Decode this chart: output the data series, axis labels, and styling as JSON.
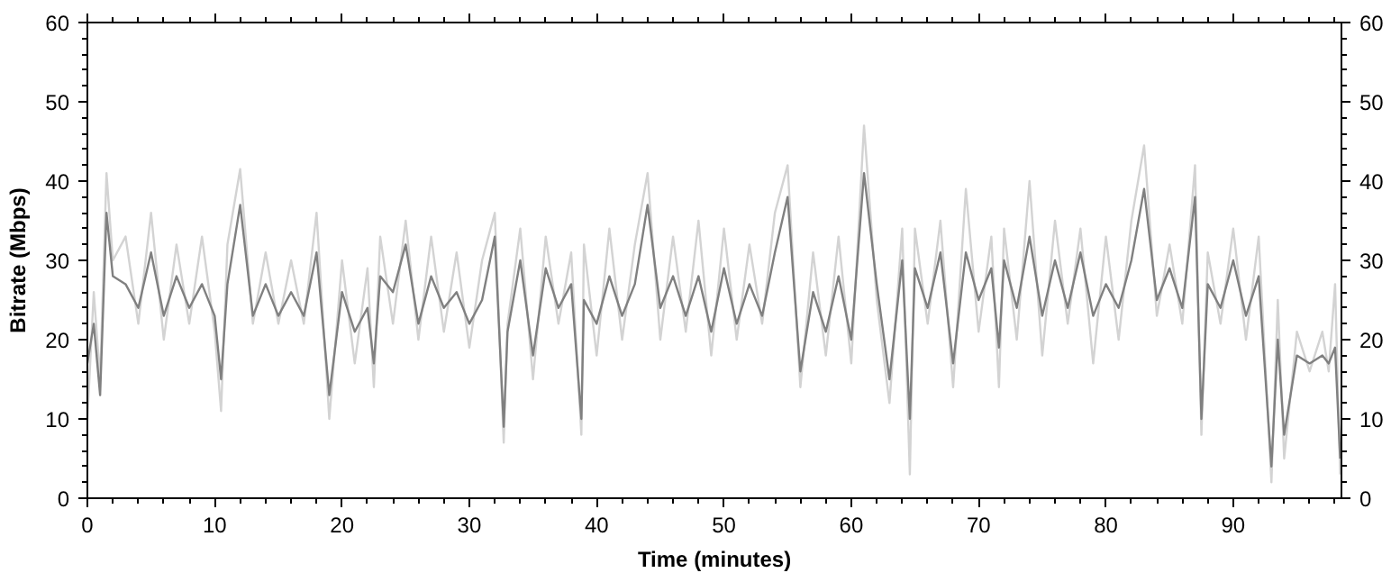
{
  "chart_data": {
    "type": "line",
    "xlabel": "Time (minutes)",
    "ylabel": "Bitrate (Mbps)",
    "x": [
      0,
      0.5,
      1,
      1.5,
      2,
      3,
      4,
      5,
      6,
      7,
      8,
      9,
      10,
      10.5,
      11,
      12,
      13,
      14,
      15,
      16,
      17,
      18,
      19,
      20,
      21,
      22,
      22.5,
      23,
      24,
      25,
      26,
      27,
      28,
      29,
      30,
      31,
      32,
      32.7,
      33,
      34,
      35,
      36,
      37,
      38,
      38.8,
      39,
      40,
      41,
      42,
      43,
      44,
      45,
      46,
      47,
      48,
      49,
      50,
      51,
      52,
      53,
      54,
      55,
      56,
      57,
      58,
      59,
      60,
      61,
      62,
      63,
      64,
      64.6,
      65,
      66,
      67,
      68,
      69,
      70,
      71,
      71.6,
      72,
      73,
      74,
      75,
      76,
      77,
      78,
      79,
      80,
      81,
      82,
      83,
      84,
      85,
      86,
      87,
      87.5,
      88,
      89,
      90,
      91,
      92,
      93,
      93.5,
      94,
      95,
      96,
      97,
      97.5,
      98,
      98.4
    ],
    "series": [
      {
        "color": "#d3d3d3",
        "values": [
          10,
          26,
          15,
          41,
          30,
          33,
          22,
          36,
          20,
          32,
          22,
          33,
          21,
          11,
          32,
          41.5,
          22,
          31,
          22,
          30,
          22,
          36,
          10,
          30,
          17,
          29,
          14,
          33,
          22,
          35,
          20,
          33,
          21,
          31,
          19,
          30,
          36,
          7,
          22,
          34,
          15,
          33,
          22,
          31,
          8,
          32,
          18,
          34,
          20,
          32,
          41,
          20,
          33,
          21,
          35,
          18,
          34,
          20,
          32,
          22,
          36,
          42,
          14,
          31,
          18,
          33,
          17,
          47,
          25,
          12,
          34,
          3,
          34,
          22,
          35,
          14,
          39,
          21,
          33,
          14,
          34,
          20,
          40,
          18,
          35,
          22,
          34,
          17,
          33,
          20,
          35,
          44.5,
          23,
          32,
          22,
          42,
          8,
          31,
          22,
          34,
          20,
          33,
          2,
          25,
          5,
          21,
          16,
          21,
          16,
          27,
          3
        ]
      },
      {
        "color": "#808080",
        "values": [
          17,
          22,
          13,
          36,
          28,
          27,
          24,
          31,
          23,
          28,
          24,
          27,
          23,
          15,
          27,
          37,
          23,
          27,
          23,
          26,
          23,
          31,
          13,
          26,
          21,
          24,
          17,
          28,
          26,
          32,
          22,
          28,
          24,
          26,
          22,
          25,
          33,
          9,
          21,
          30,
          18,
          29,
          24,
          27,
          10,
          25,
          22,
          28,
          23,
          27,
          37,
          24,
          28,
          23,
          28,
          21,
          29,
          22,
          27,
          23,
          31,
          38,
          16,
          26,
          21,
          28,
          20,
          41,
          27,
          15,
          30,
          10,
          29,
          24,
          31,
          17,
          31,
          25,
          29,
          19,
          30,
          24,
          33,
          23,
          30,
          24,
          31,
          23,
          27,
          24,
          30,
          39,
          25,
          29,
          24,
          38,
          10,
          27,
          24,
          30,
          23,
          28,
          4,
          20,
          8,
          18,
          17,
          18,
          17,
          19,
          5
        ]
      }
    ],
    "xlim": [
      0,
      98.5
    ],
    "xticks": [
      0,
      10,
      20,
      30,
      40,
      50,
      60,
      70,
      80,
      90
    ],
    "ylim": [
      0,
      60
    ],
    "yticks": [
      0,
      10,
      20,
      30,
      40,
      50,
      60
    ],
    "y2lim": [
      0,
      60
    ],
    "y2ticks": [
      0,
      10,
      20,
      30,
      40,
      50,
      60
    ],
    "grid": false,
    "marker": "none",
    "line_style": "solid"
  }
}
